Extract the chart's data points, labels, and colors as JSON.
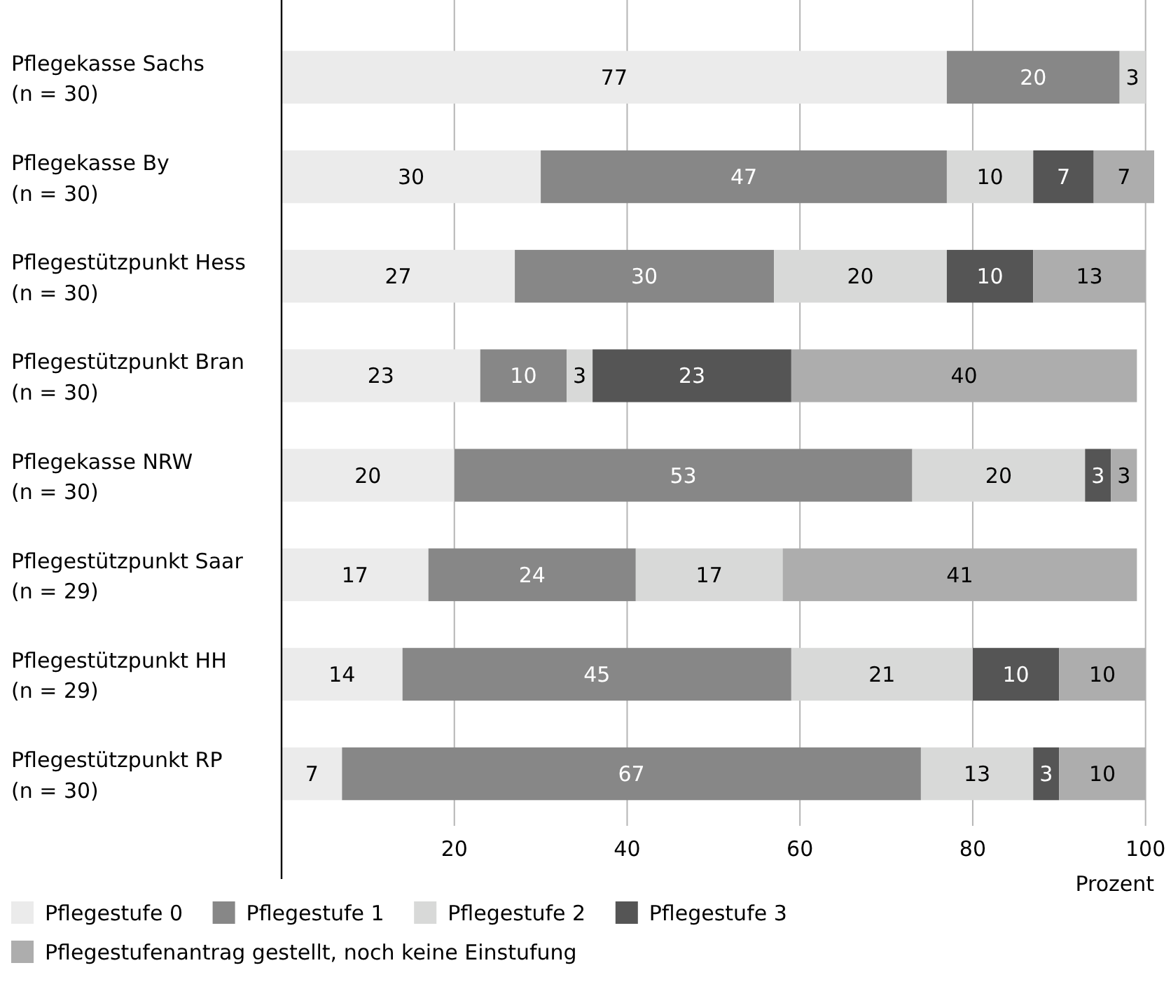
{
  "chart_data": {
    "type": "bar",
    "orientation": "horizontal",
    "stacked": true,
    "categories": [
      "Pflegekasse Sachs\n(n = 30)",
      "Pflegekasse By\n(n = 30)",
      "Pflegestützpunkt Hess\n(n = 30)",
      "Pflegestützpunkt Bran\n(n = 30)",
      "Pflegekasse NRW\n(n = 30)",
      "Pflegestützpunkt Saar\n(n = 29)",
      "Pflegestützpunkt HH\n(n = 29)",
      "Pflegestützpunkt RP\n(n = 30)"
    ],
    "series": [
      {
        "name": "Pflegestufe 0",
        "color": "#ebebeb",
        "values": [
          77,
          30,
          27,
          23,
          20,
          17,
          14,
          7
        ]
      },
      {
        "name": "Pflegestufe 1",
        "color": "#878787",
        "values": [
          20,
          47,
          30,
          10,
          53,
          24,
          45,
          67
        ]
      },
      {
        "name": "Pflegestufe 2",
        "color": "#d8d9d8",
        "values": [
          3,
          10,
          20,
          3,
          20,
          17,
          21,
          13
        ]
      },
      {
        "name": "Pflegestufe 3",
        "color": "#555555",
        "values": [
          null,
          7,
          10,
          23,
          3,
          null,
          10,
          3
        ]
      },
      {
        "name": "Pflegestufenantrag gestellt, noch keine Einstufung",
        "color": "#adadad",
        "values": [
          null,
          7,
          13,
          40,
          3,
          41,
          10,
          10
        ]
      }
    ],
    "xlim": [
      0,
      101
    ],
    "xticks": [
      20,
      40,
      60,
      80,
      100
    ],
    "xlabel": "Prozent",
    "grid": "x",
    "data_labels": true,
    "legend": "bottom"
  }
}
